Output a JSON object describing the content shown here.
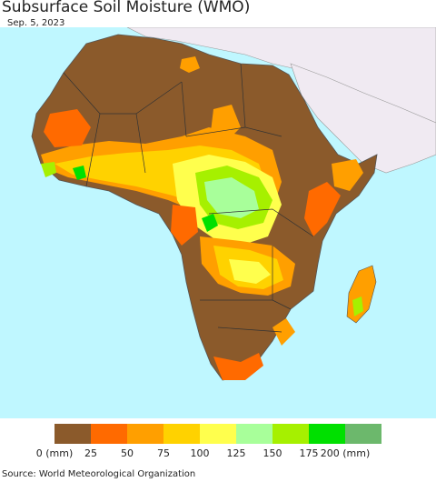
{
  "title": "Subsurface Soil Moisture (WMO)",
  "date": "Sep. 5, 2023",
  "source": "Source: World Meteorological Organization",
  "legend": {
    "colors": [
      "#8b5a2b",
      "#ff6a00",
      "#ff9f00",
      "#ffd200",
      "#ffff4d",
      "#a8ff9a",
      "#a6f000",
      "#00e000",
      "#6cb86c"
    ],
    "labels": [
      "0 (mm)",
      "25",
      "50",
      "75",
      "100",
      "125",
      "150",
      "175",
      "200 (mm)"
    ]
  },
  "colors": {
    "ocean": "#bff7ff",
    "outside_land": "#f0eaf2",
    "dry": "#8b5a2b"
  }
}
